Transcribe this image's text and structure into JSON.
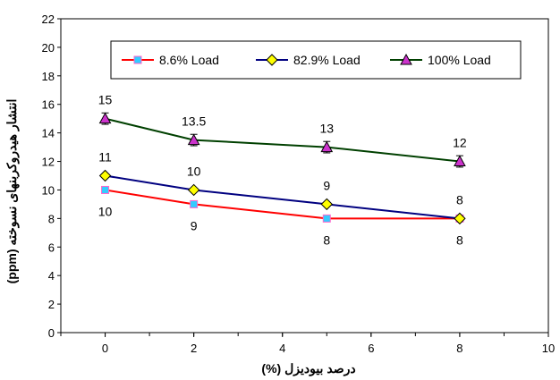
{
  "chart_data": {
    "type": "line",
    "title": "",
    "xlabel": "درصد بیودیزل (%)",
    "ylabel": "انتشار هیدروکربنهای نسوخته (ppm)",
    "xlim": [
      -1,
      10
    ],
    "ylim": [
      0,
      22
    ],
    "x_ticks": [
      0,
      2,
      4,
      6,
      8,
      10
    ],
    "y_ticks": [
      0,
      2,
      4,
      6,
      8,
      10,
      12,
      14,
      16,
      18,
      20,
      22
    ],
    "grid": false,
    "legend_position": "top",
    "series": [
      {
        "name": "8.6% Load",
        "color": "#ff0000",
        "marker": "square",
        "marker_color": "#33ccff",
        "x": [
          0,
          2,
          5,
          8
        ],
        "y": [
          10,
          9,
          8,
          8
        ],
        "labels": [
          "10",
          "9",
          "8",
          "8"
        ],
        "label_position": "below"
      },
      {
        "name": "82.9% Load",
        "color": "#000080",
        "marker": "diamond",
        "marker_color": "#ffff00",
        "x": [
          0,
          2,
          5,
          8
        ],
        "y": [
          11,
          10,
          9,
          8
        ],
        "labels": [
          "11",
          "10",
          "9",
          "8"
        ],
        "label_position": "above"
      },
      {
        "name": "100% Load",
        "color": "#004000",
        "marker": "triangle",
        "marker_color": "#cc33cc",
        "x": [
          0,
          2,
          5,
          8
        ],
        "y": [
          15,
          13.5,
          13,
          12
        ],
        "labels": [
          "15",
          "13.5",
          "13",
          "12"
        ],
        "label_position": "above",
        "error_bar": 0.4
      }
    ]
  }
}
